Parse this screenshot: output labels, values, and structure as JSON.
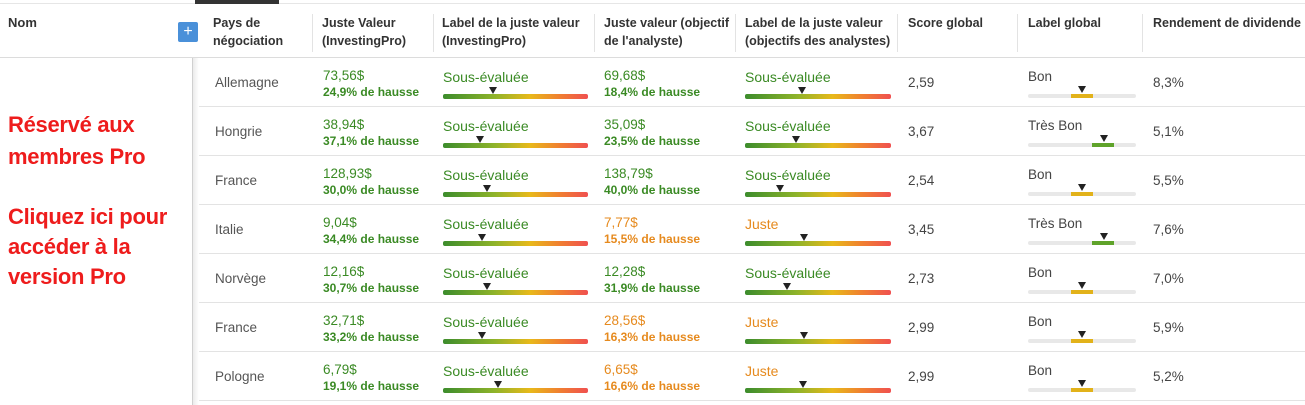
{
  "header": {
    "nom": "Nom",
    "plus": "+",
    "columns": [
      {
        "line1": "Pays de",
        "line2": "négociation"
      },
      {
        "line1": "Juste Valeur",
        "line2": "(InvestingPro)"
      },
      {
        "line1": "Label de la juste valeur",
        "line2": "(InvestingPro)"
      },
      {
        "line1": "Juste valeur (objectif",
        "line2": "de l'analyste)"
      },
      {
        "line1": "Label de la juste valeur",
        "line2": "(objectifs des analystes)"
      },
      {
        "line1": "Score global",
        "line2": ""
      },
      {
        "line1": "Label global",
        "line2": ""
      },
      {
        "line1": "Rendement de dividende",
        "line2": ""
      }
    ]
  },
  "pro": {
    "line1": "Réservé aux",
    "line2": "membres Pro",
    "line3": "Cliquez ici pour",
    "line4": "accéder à la",
    "line5": "version Pro"
  },
  "colors": {
    "green": "#3a8a24",
    "orange": "#e68a1e",
    "pro_red": "#ee1c1c",
    "plus_blue": "#4a90d9"
  },
  "rows": [
    {
      "country": "Allemagne",
      "fv": "73,56$",
      "fv_sub": "24,9% de hausse",
      "fv_label": "Sous-évaluée",
      "av": "69,68$",
      "av_sub": "18,4% de hausse",
      "av_label": "Sous-évaluée",
      "av_tone": "green",
      "score": "2,59",
      "glabel": "Bon",
      "gtone": "bon",
      "div": "8,3%"
    },
    {
      "country": "Hongrie",
      "fv": "38,94$",
      "fv_sub": "37,1% de hausse",
      "fv_label": "Sous-évaluée",
      "av": "35,09$",
      "av_sub": "23,5% de hausse",
      "av_label": "Sous-évaluée",
      "av_tone": "green",
      "score": "3,67",
      "glabel": "Très Bon",
      "gtone": "tresbon",
      "div": "5,1%"
    },
    {
      "country": "France",
      "fv": "128,93$",
      "fv_sub": "30,0% de hausse",
      "fv_label": "Sous-évaluée",
      "av": "138,79$",
      "av_sub": "40,0% de hausse",
      "av_label": "Sous-évaluée",
      "av_tone": "green",
      "score": "2,54",
      "glabel": "Bon",
      "gtone": "bon",
      "div": "5,5%"
    },
    {
      "country": "Italie",
      "fv": "9,04$",
      "fv_sub": "34,4% de hausse",
      "fv_label": "Sous-évaluée",
      "av": "7,77$",
      "av_sub": "15,5% de hausse",
      "av_label": "Juste",
      "av_tone": "orange",
      "score": "3,45",
      "glabel": "Très Bon",
      "gtone": "tresbon",
      "div": "7,6%"
    },
    {
      "country": "Norvège",
      "fv": "12,16$",
      "fv_sub": "30,7% de hausse",
      "fv_label": "Sous-évaluée",
      "av": "12,28$",
      "av_sub": "31,9% de hausse",
      "av_label": "Sous-évaluée",
      "av_tone": "green",
      "score": "2,73",
      "glabel": "Bon",
      "gtone": "bon",
      "div": "7,0%"
    },
    {
      "country": "France",
      "fv": "32,71$",
      "fv_sub": "33,2% de hausse",
      "fv_label": "Sous-évaluée",
      "av": "28,56$",
      "av_sub": "16,3% de hausse",
      "av_label": "Juste",
      "av_tone": "orange",
      "score": "2,99",
      "glabel": "Bon",
      "gtone": "bon",
      "div": "5,9%"
    },
    {
      "country": "Pologne",
      "fv": "6,79$",
      "fv_sub": "19,1% de hausse",
      "fv_label": "Sous-évaluée",
      "av": "6,65$",
      "av_sub": "16,6% de hausse",
      "av_label": "Juste",
      "av_tone": "orange",
      "score": "2,99",
      "glabel": "Bon",
      "gtone": "bon",
      "div": "5,2%"
    }
  ]
}
